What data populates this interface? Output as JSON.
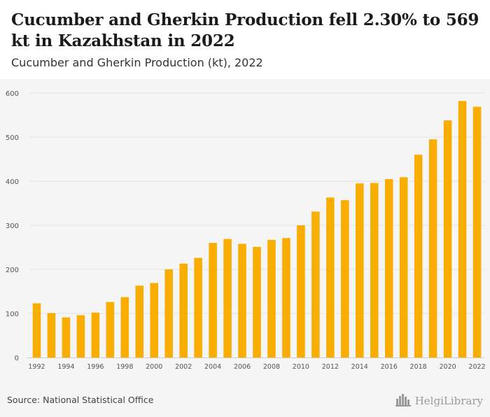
{
  "header": {
    "title": "Cucumber and Gherkin Production fell 2.30% to 569 kt in Kazakhstan in 2022",
    "subtitle": "Cucumber and Gherkin Production (kt), 2022"
  },
  "footer": {
    "source": "Source: National Statistical Office",
    "logo_text": "HelgiLibrary",
    "logo_icon": "city-skyline-icon"
  },
  "colors": {
    "bar": "#F9AD00",
    "grid": "#e2e2e2",
    "background": "#f5f5f5"
  },
  "chart_data": {
    "type": "bar",
    "title": "",
    "xlabel": "",
    "ylabel": "",
    "ylim": [
      0,
      600
    ],
    "yticks": [
      0,
      100,
      200,
      300,
      400,
      500,
      600
    ],
    "grid": true,
    "categories": [
      "1992",
      "1993",
      "1994",
      "1995",
      "1996",
      "1997",
      "1998",
      "1999",
      "2000",
      "2001",
      "2002",
      "2003",
      "2004",
      "2005",
      "2006",
      "2007",
      "2008",
      "2009",
      "2010",
      "2011",
      "2012",
      "2013",
      "2014",
      "2015",
      "2016",
      "2017",
      "2018",
      "2019",
      "2020",
      "2021",
      "2022"
    ],
    "xtick_labels": [
      "1992",
      "1994",
      "1996",
      "1998",
      "2000",
      "2002",
      "2004",
      "2006",
      "2008",
      "2010",
      "2012",
      "2014",
      "2016",
      "2018",
      "2020",
      "2022"
    ],
    "values": [
      123,
      101,
      91,
      96,
      102,
      126,
      137,
      163,
      169,
      200,
      213,
      226,
      260,
      269,
      258,
      251,
      267,
      271,
      300,
      331,
      363,
      357,
      395,
      396,
      405,
      409,
      460,
      495,
      538,
      582,
      569
    ]
  }
}
